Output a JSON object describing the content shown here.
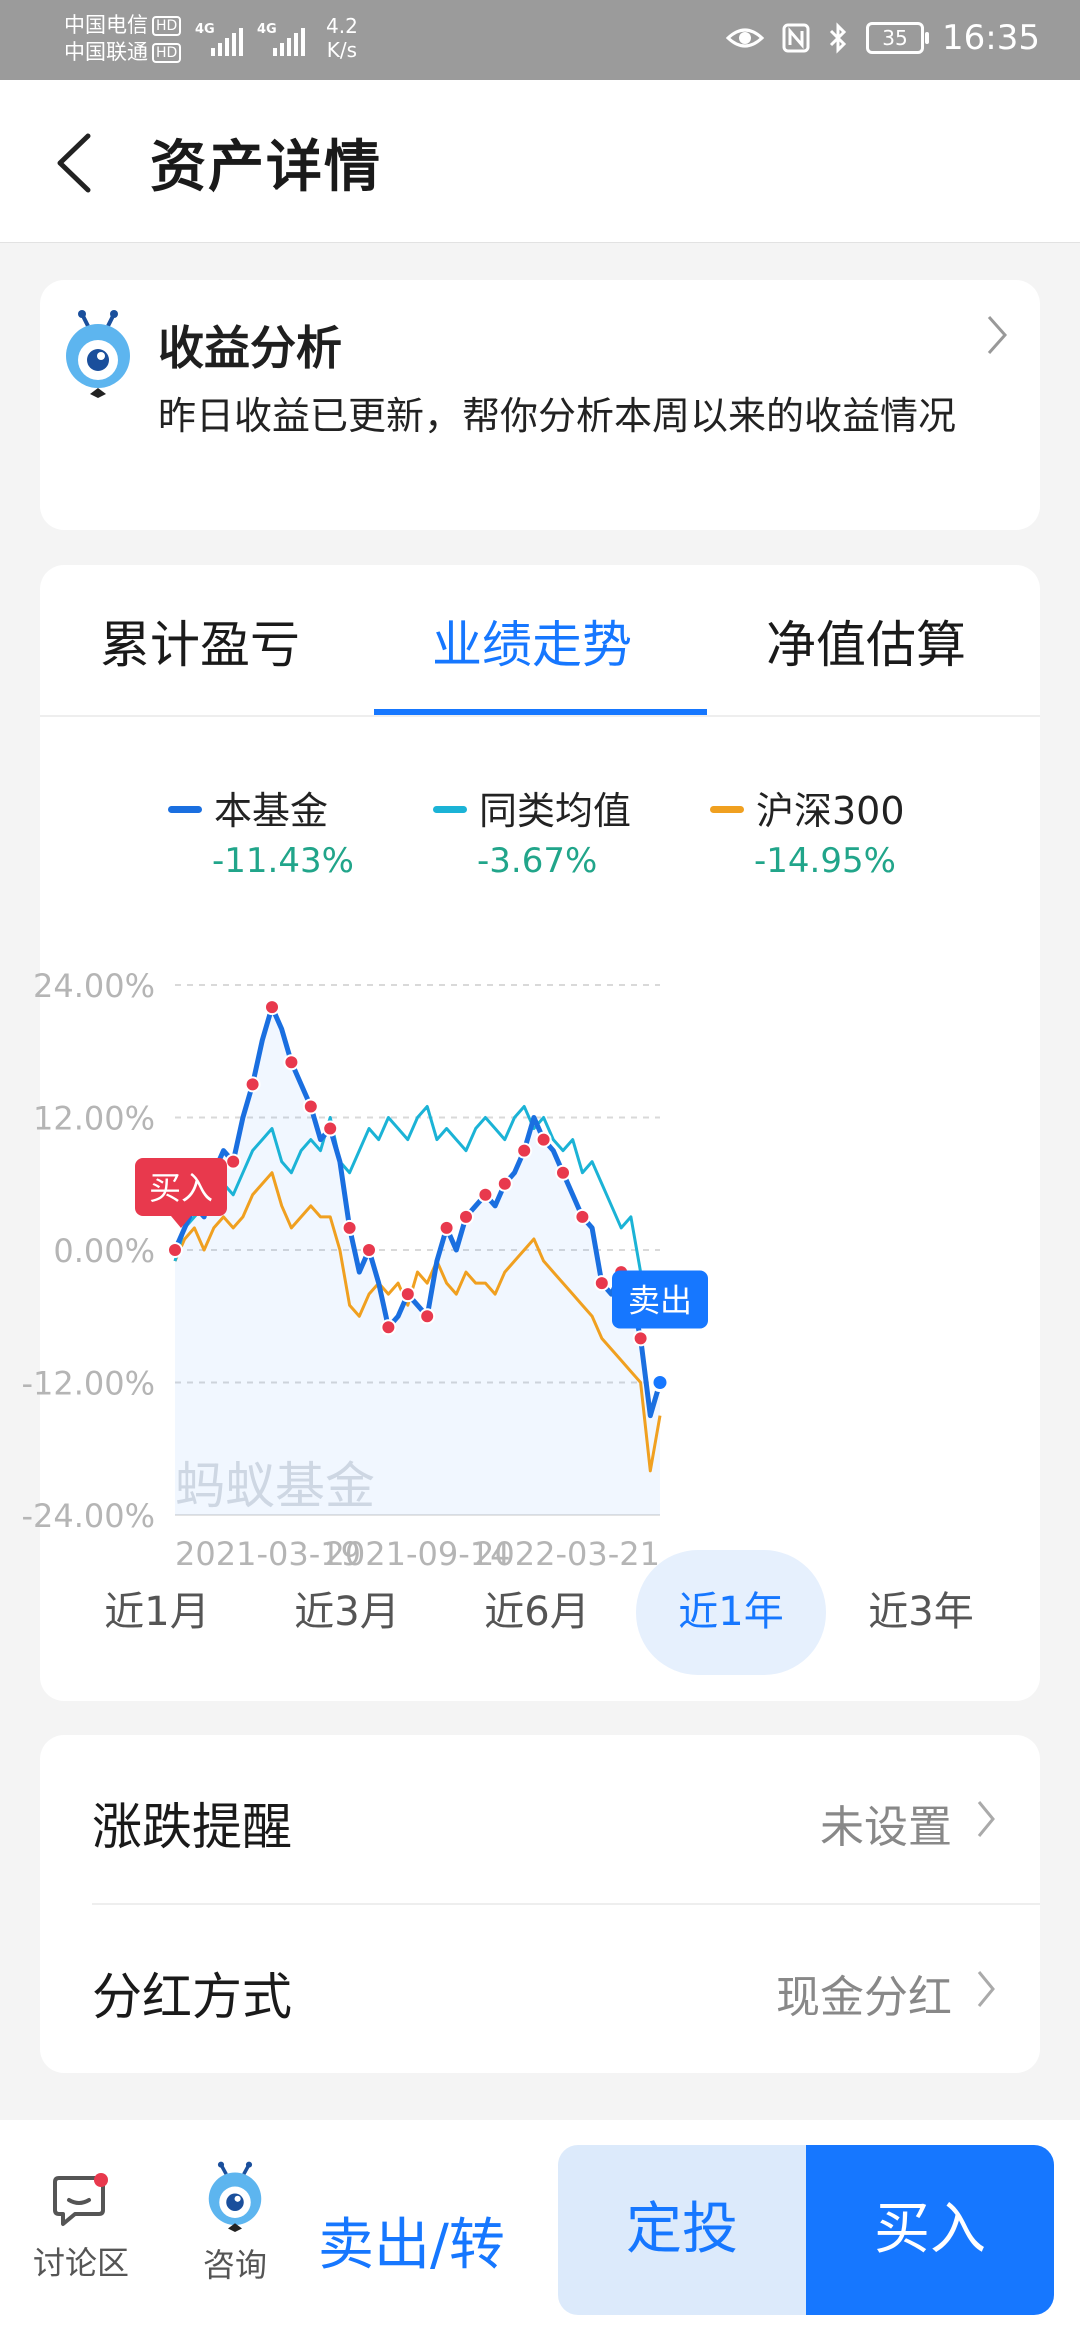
{
  "status_bar": {
    "carrier1": "中国电信",
    "carrier2": "中国联通",
    "hd": "HD",
    "net1": "4G",
    "net2": "4G",
    "speed_value": "4.2",
    "speed_unit": "K/s",
    "battery": "35",
    "time": "16:35"
  },
  "header": {
    "title": "资产详情"
  },
  "analysis": {
    "title": "收益分析",
    "desc": "昨日收益已更新，帮你分析本周以来的收益情况"
  },
  "tabs": [
    "累计盈亏",
    "业绩走势",
    "净值估算"
  ],
  "active_tab": "业绩走势",
  "legend": [
    {
      "name": "本基金",
      "value": "-11.43%",
      "color": "#1a6fe0"
    },
    {
      "name": "同类均值",
      "value": "-3.67%",
      "color": "#1bb3d6"
    },
    {
      "name": "沪深300",
      "value": "-14.95%",
      "color": "#f0a020"
    }
  ],
  "chart_data": {
    "type": "line",
    "yticks": [
      "24.00%",
      "12.00%",
      "0.00%",
      "-12.00%",
      "-24.00%"
    ],
    "ylim": [
      -24,
      24
    ],
    "xticks": [
      "2021-03-19",
      "2021-09-14",
      "2022-03-21"
    ],
    "watermark": "蚂蚁基金",
    "buy_label": "买入",
    "sell_label": "卖出",
    "x": [
      0,
      0.02,
      0.04,
      0.06,
      0.08,
      0.1,
      0.12,
      0.14,
      0.16,
      0.18,
      0.2,
      0.22,
      0.24,
      0.26,
      0.28,
      0.3,
      0.32,
      0.34,
      0.36,
      0.38,
      0.4,
      0.42,
      0.44,
      0.46,
      0.48,
      0.5,
      0.52,
      0.54,
      0.56,
      0.58,
      0.6,
      0.62,
      0.64,
      0.66,
      0.68,
      0.7,
      0.72,
      0.74,
      0.76,
      0.78,
      0.8,
      0.82,
      0.84,
      0.86,
      0.88,
      0.9,
      0.92,
      0.94,
      0.96,
      0.98,
      1.0
    ],
    "series": [
      {
        "name": "本基金",
        "values": [
          0,
          2,
          4,
          3,
          7,
          9,
          8,
          12,
          15,
          19,
          22,
          20,
          17,
          15,
          13,
          10,
          11,
          8,
          2,
          -2,
          0,
          -3,
          -7,
          -6,
          -4,
          -5,
          -6,
          -1,
          2,
          0,
          3,
          4,
          5,
          4,
          6,
          7,
          9,
          12,
          10,
          9,
          7,
          5,
          3,
          2,
          -3,
          -4,
          -2,
          -4,
          -8,
          -15,
          -12
        ]
      },
      {
        "name": "同类均值",
        "values": [
          -1,
          2,
          3,
          4,
          5,
          6,
          5,
          7,
          9,
          10,
          11,
          8,
          7,
          9,
          10,
          9,
          12,
          8,
          7,
          9,
          11,
          10,
          12,
          11,
          10,
          12,
          13,
          10,
          11,
          10,
          9,
          11,
          12,
          11,
          10,
          12,
          13,
          11,
          12,
          10,
          9,
          10,
          7,
          8,
          6,
          4,
          2,
          3,
          -2,
          -5,
          -4
        ]
      },
      {
        "name": "沪深300",
        "values": [
          -1,
          1,
          2,
          0,
          2,
          3,
          2,
          3,
          5,
          6,
          7,
          4,
          2,
          3,
          4,
          3,
          3,
          0,
          -5,
          -6,
          -4,
          -3,
          -4,
          -3,
          -5,
          -2,
          -3,
          -1,
          -3,
          -4,
          -2,
          -3,
          -3,
          -4,
          -2,
          -1,
          0,
          1,
          -1,
          -2,
          -3,
          -4,
          -5,
          -6,
          -8,
          -9,
          -10,
          -11,
          -12,
          -20,
          -15
        ]
      }
    ]
  },
  "ranges": [
    "近1月",
    "近3月",
    "近6月",
    "近1年",
    "近3年"
  ],
  "active_range": "近1年",
  "settings": [
    {
      "label": "涨跌提醒",
      "value": "未设置"
    },
    {
      "label": "分红方式",
      "value": "现金分红"
    }
  ],
  "bottom_bar": {
    "discuss": "讨论区",
    "consult": "咨询",
    "sell": "卖出/转",
    "auto_invest": "定投",
    "buy": "买入"
  },
  "colors": {
    "accent": "#1677ff",
    "positive_green": "#21a58a",
    "badge_red": "#e8394d"
  }
}
